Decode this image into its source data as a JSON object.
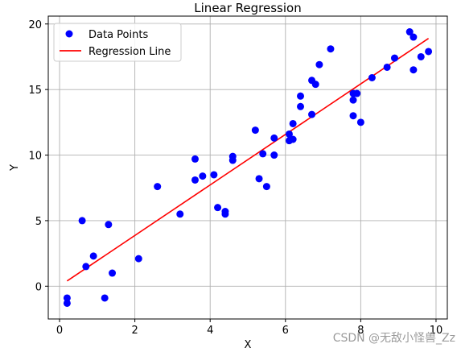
{
  "watermark": "CSDN @无敌小怪兽_Zz",
  "chart_data": {
    "type": "scatter",
    "title": "Linear Regression",
    "xlabel": "X",
    "ylabel": "Y",
    "xlim": [
      -0.3,
      10.3
    ],
    "ylim": [
      -2.5,
      20.6
    ],
    "xticks": [
      0,
      2,
      4,
      6,
      8,
      10
    ],
    "yticks": [
      0,
      5,
      10,
      15,
      20
    ],
    "grid": true,
    "legend_position": "top-left",
    "colors": {
      "points": "#0000ff",
      "line": "#ff0000",
      "grid": "#b0b0b0"
    },
    "series": [
      {
        "name": "Data Points",
        "kind": "scatter",
        "points": [
          [
            0.2,
            -1.3
          ],
          [
            0.2,
            -0.9
          ],
          [
            0.6,
            5.0
          ],
          [
            0.7,
            1.5
          ],
          [
            0.9,
            2.3
          ],
          [
            1.2,
            -0.9
          ],
          [
            1.3,
            4.7
          ],
          [
            1.4,
            1.0
          ],
          [
            2.1,
            2.1
          ],
          [
            2.6,
            7.6
          ],
          [
            3.2,
            5.5
          ],
          [
            3.6,
            8.1
          ],
          [
            3.6,
            9.7
          ],
          [
            3.8,
            8.4
          ],
          [
            4.1,
            8.5
          ],
          [
            4.2,
            6.0
          ],
          [
            4.4,
            5.5
          ],
          [
            4.4,
            5.7
          ],
          [
            4.6,
            9.9
          ],
          [
            4.6,
            9.6
          ],
          [
            5.2,
            11.9
          ],
          [
            5.3,
            8.2
          ],
          [
            5.4,
            10.1
          ],
          [
            5.5,
            7.6
          ],
          [
            5.7,
            10.0
          ],
          [
            5.7,
            11.3
          ],
          [
            6.1,
            11.1
          ],
          [
            6.1,
            11.6
          ],
          [
            6.2,
            11.2
          ],
          [
            6.2,
            12.4
          ],
          [
            6.4,
            13.7
          ],
          [
            6.4,
            14.5
          ],
          [
            6.7,
            15.7
          ],
          [
            6.7,
            13.1
          ],
          [
            6.8,
            15.4
          ],
          [
            6.9,
            16.9
          ],
          [
            7.2,
            18.1
          ],
          [
            7.8,
            13.0
          ],
          [
            7.8,
            14.2
          ],
          [
            7.8,
            14.7
          ],
          [
            7.9,
            14.7
          ],
          [
            8.0,
            12.5
          ],
          [
            8.3,
            15.9
          ],
          [
            8.7,
            16.7
          ],
          [
            8.9,
            17.4
          ],
          [
            9.3,
            19.4
          ],
          [
            9.4,
            16.5
          ],
          [
            9.4,
            19.0
          ],
          [
            9.6,
            17.5
          ],
          [
            9.8,
            17.9
          ]
        ]
      },
      {
        "name": "Regression Line",
        "kind": "line",
        "points": [
          [
            0.2,
            0.4
          ],
          [
            9.8,
            18.9
          ]
        ]
      }
    ]
  }
}
